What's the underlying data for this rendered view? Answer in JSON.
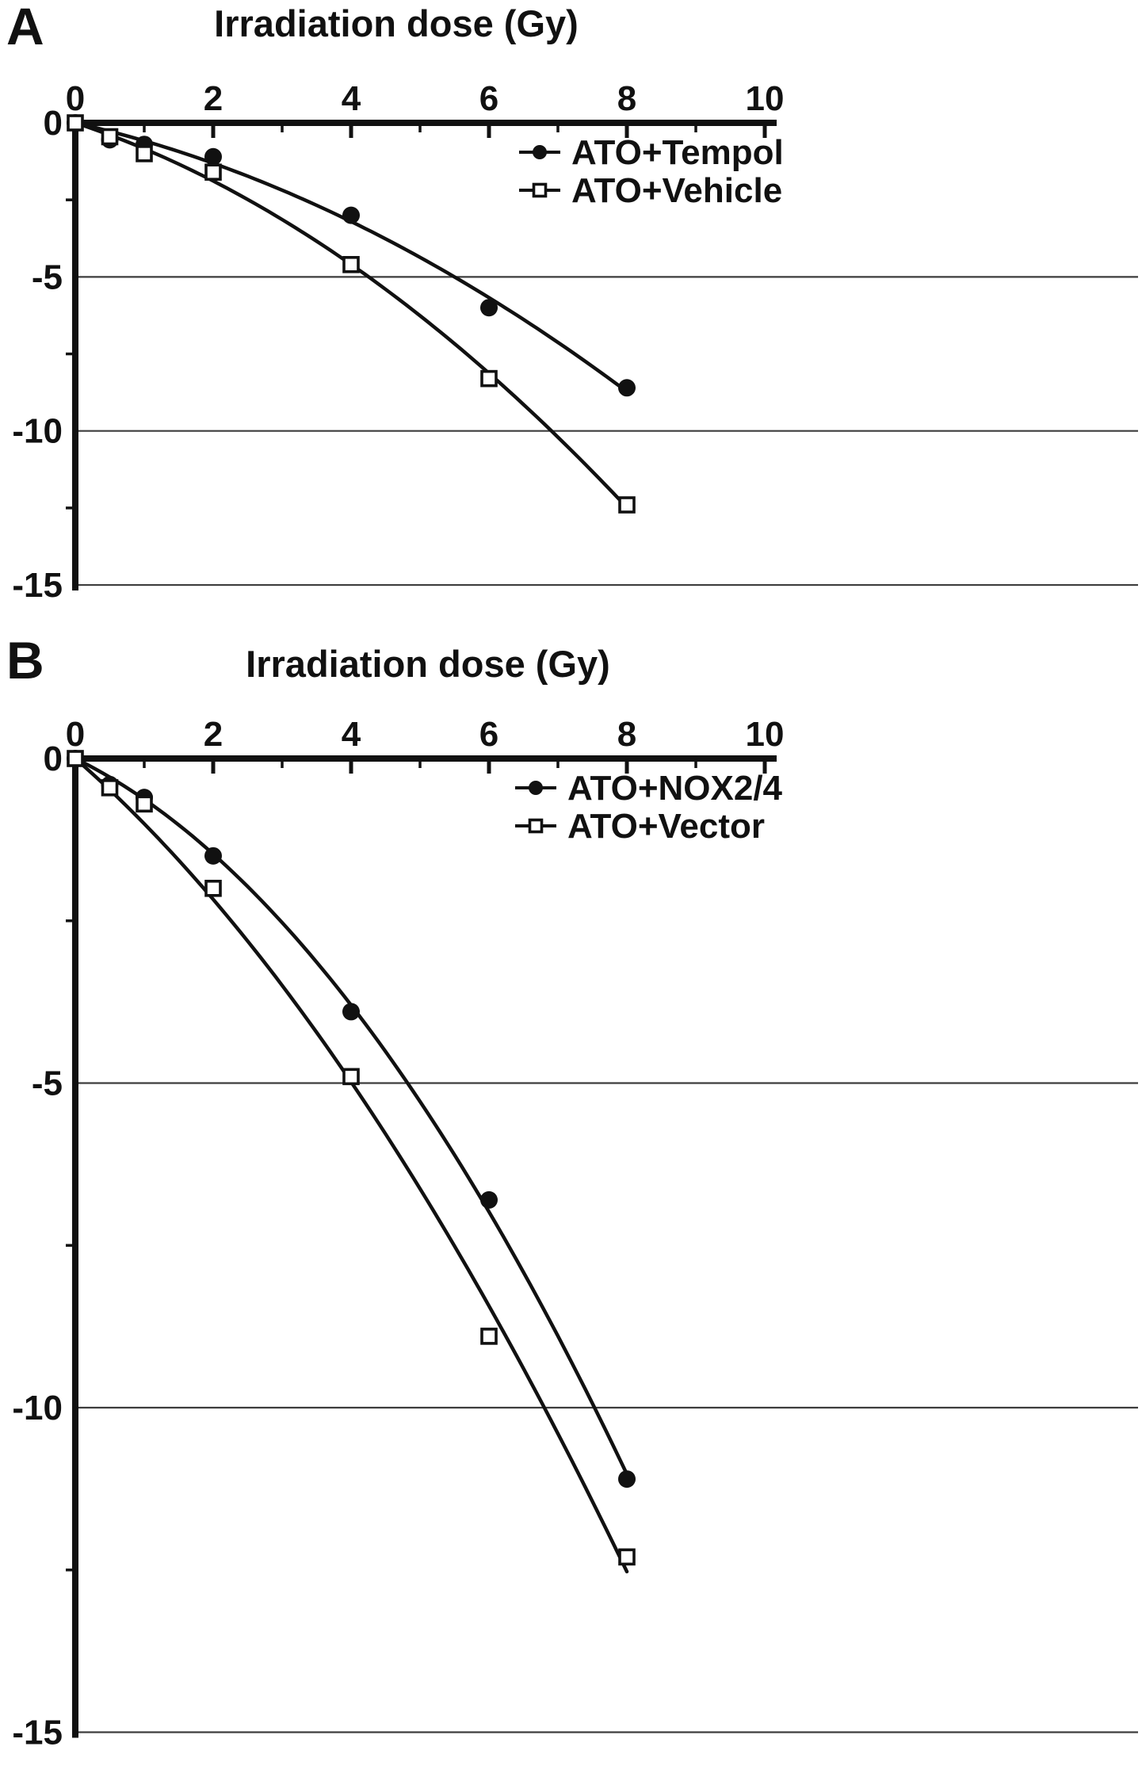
{
  "page": {
    "background": "#ffffff",
    "ink": "#111111",
    "grid_color": "#3d3d3d"
  },
  "chart_data": [
    {
      "type": "scatter",
      "panel_label": "A",
      "title": "Irradiation dose (Gy)",
      "xlabel": "Irradiation dose (Gy)",
      "ylabel": "",
      "xlim": [
        0,
        10
      ],
      "ylim": [
        0,
        -15
      ],
      "x_ticks": [
        0,
        2,
        4,
        6,
        8,
        10
      ],
      "x_minor_ticks": [
        1,
        3,
        5,
        7,
        9
      ],
      "y_ticks": [
        0,
        -5,
        -10,
        -15
      ],
      "y_minor_ticks": [
        -2.5,
        -7.5,
        -12.5
      ],
      "grid_values": [
        -5,
        -10,
        -15
      ],
      "legend_position": "top-right",
      "fit": "linear-quadratic",
      "series": [
        {
          "name": "ATO+Tempol",
          "marker": "filled-circle",
          "x": [
            0,
            0.5,
            1,
            2,
            4,
            6,
            8
          ],
          "y": [
            0,
            -0.55,
            -0.7,
            -1.1,
            -3.0,
            -6.0,
            -8.6
          ]
        },
        {
          "name": "ATO+Vehicle",
          "marker": "open-square",
          "x": [
            0,
            0.5,
            1,
            2,
            4,
            6,
            8
          ],
          "y": [
            0,
            -0.45,
            -1.0,
            -1.6,
            -4.6,
            -8.3,
            -12.4
          ]
        }
      ]
    },
    {
      "type": "scatter",
      "panel_label": "B",
      "title": "Irradiation dose (Gy)",
      "xlabel": "Irradiation dose (Gy)",
      "ylabel": "",
      "xlim": [
        0,
        10
      ],
      "ylim": [
        0,
        -15
      ],
      "x_ticks": [
        0,
        2,
        4,
        6,
        8,
        10
      ],
      "x_minor_ticks": [
        1,
        3,
        5,
        7,
        9
      ],
      "y_ticks": [
        0,
        -5,
        -10,
        -15
      ],
      "y_minor_ticks": [
        -2.5,
        -7.5,
        -12.5
      ],
      "grid_values": [
        -5,
        -10,
        -15
      ],
      "legend_position": "top-right",
      "fit": "linear-quadratic",
      "series": [
        {
          "name": "ATO+NOX2/4",
          "marker": "filled-circle",
          "x": [
            0,
            0.5,
            1,
            2,
            4,
            6,
            8
          ],
          "y": [
            0,
            -0.4,
            -0.6,
            -1.5,
            -3.9,
            -6.8,
            -11.1
          ]
        },
        {
          "name": "ATO+Vector",
          "marker": "open-square",
          "x": [
            0,
            0.5,
            1,
            2,
            4,
            6,
            8
          ],
          "y": [
            0,
            -0.45,
            -0.7,
            -2.0,
            -4.9,
            -8.9,
            -12.3
          ]
        }
      ]
    }
  ]
}
